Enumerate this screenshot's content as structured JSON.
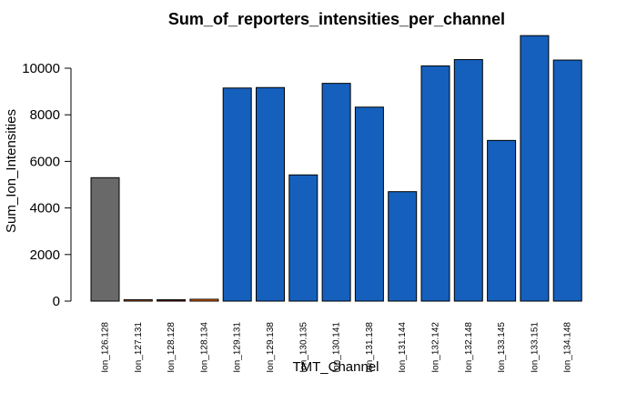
{
  "chart_data": {
    "type": "bar",
    "title": "Sum_of_reporters_intensities_per_channel",
    "xlabel": "TMT_Channel",
    "ylabel": "Sum_Ion_Intensities",
    "ylim": [
      0,
      11500
    ],
    "yticks": [
      0,
      2000,
      4000,
      6000,
      8000,
      10000
    ],
    "grid": false,
    "categories": [
      "Ion_126.128",
      "Ion_127.131",
      "Ion_128.128",
      "Ion_128.134",
      "Ion_129.131",
      "Ion_129.138",
      "Ion_130.135",
      "Ion_130.141",
      "Ion_131.138",
      "Ion_131.144",
      "Ion_132.142",
      "Ion_132.148",
      "Ion_133.145",
      "Ion_133.151",
      "Ion_134.148"
    ],
    "values": [
      5300,
      60,
      50,
      80,
      9150,
      9170,
      5420,
      9350,
      8330,
      4700,
      10100,
      10370,
      6900,
      11400,
      10350
    ],
    "colors": [
      "#696969",
      "#d2691e",
      "#8b0000",
      "#ff6a00",
      "#1560bd",
      "#1560bd",
      "#1560bd",
      "#1560bd",
      "#1560bd",
      "#1560bd",
      "#1560bd",
      "#1560bd",
      "#1560bd",
      "#1560bd",
      "#1560bd"
    ]
  }
}
